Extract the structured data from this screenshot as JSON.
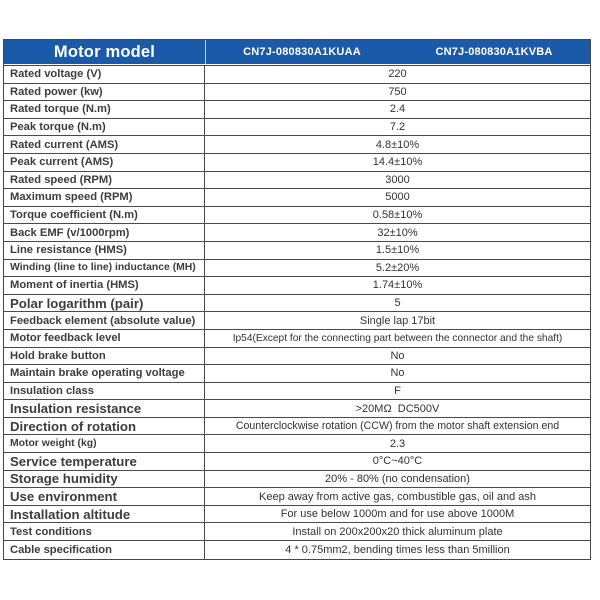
{
  "table": {
    "header": {
      "label": "Motor model",
      "models": [
        "CN7J-080830A1KUAA",
        "CN7J-080830A1KVBA"
      ]
    },
    "rows": [
      {
        "label": "Rated voltage (V)",
        "value": "220"
      },
      {
        "label": "Rated power (kw)",
        "value": "750"
      },
      {
        "label": "Rated torque (N.m)",
        "value": "2.4"
      },
      {
        "label": "Peak torque (N.m)",
        "value": "7.2"
      },
      {
        "label": "Rated current (AMS)",
        "value": "4.8±10%"
      },
      {
        "label": "Peak current (AMS)",
        "value": "14.4±10%"
      },
      {
        "label": "Rated speed (RPM)",
        "value": "3000"
      },
      {
        "label": "Maximum speed (RPM)",
        "value": "5000"
      },
      {
        "label": "Torque coefficient (N.m)",
        "value": "0.58±10%"
      },
      {
        "label": "Back EMF (v/1000rpm)",
        "value": "32±10%"
      },
      {
        "label": "Line resistance (HMS)",
        "value": "1.5±10%"
      },
      {
        "label": "Winding (line to line) inductance (MH)",
        "value": "5.2±20%"
      },
      {
        "label": "Moment of inertia (HMS)",
        "value": "1.74±10%"
      },
      {
        "label": "Polar logarithm (pair)",
        "value": "5"
      },
      {
        "label": "Feedback element (absolute value)",
        "value": "Single lap 17bit"
      },
      {
        "label": "Motor feedback level",
        "value": "Ip54(Except for the connecting part between the connector and the shaft)"
      },
      {
        "label": "Hold brake button",
        "value": "No"
      },
      {
        "label": "Maintain brake operating voltage",
        "value": "No"
      },
      {
        "label": "Insulation class",
        "value": "F"
      },
      {
        "label": "Insulation resistance",
        "value": ">20MΩ  DC500V"
      },
      {
        "label": "Direction of rotation",
        "value": "Counterclockwise rotation (CCW) from the motor shaft extension end"
      },
      {
        "label": "Motor weight (kg)",
        "value": "2.3"
      },
      {
        "label": "Service temperature",
        "value": "0°C~40°C"
      },
      {
        "label": "Storage humidity",
        "value": "20% - 80% (no condensation)"
      },
      {
        "label": "Use environment",
        "value": "Keep away from active gas, combustible gas, oil and ash"
      },
      {
        "label": "Installation altitude",
        "value": "For use below 1000m and for use above 1000M"
      },
      {
        "label": "Test conditions",
        "value": "Install on 200x200x20 thick aluminum plate"
      },
      {
        "label": "Cable specification",
        "value": "4 * 0.75mm2, bending times less than 5million"
      }
    ],
    "colors": {
      "header_bg": "#1b5aa9",
      "header_text": "#ffffff",
      "border": "#4a4a4a",
      "label_text": "#3d3d3d",
      "value_text": "#333333"
    }
  }
}
